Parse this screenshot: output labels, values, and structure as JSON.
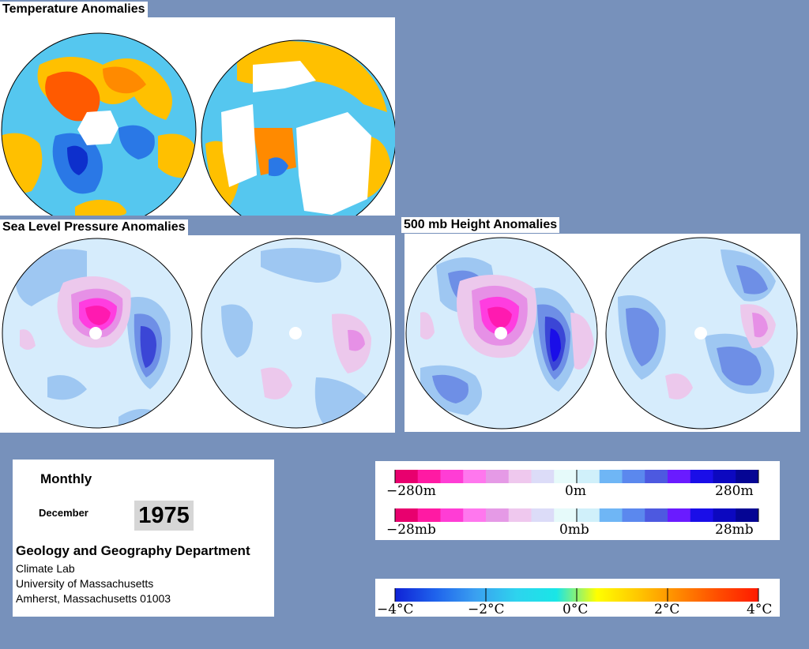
{
  "titles": {
    "temperature": "Temperature Anomalies",
    "slp": "Sea Level Pressure Anomalies",
    "height": "500 mb Height Anomalies"
  },
  "info": {
    "period": "Monthly",
    "month": "December",
    "year": "1975",
    "department": "Geology and Geography Department",
    "lab": "Climate Lab",
    "university": "University of Massachusetts",
    "address": "Amherst, Massachusetts 01003"
  },
  "legend_height": {
    "left": "−280m",
    "center": "0m",
    "right": "280m",
    "colors": [
      "#e8006e",
      "#ff1aa3",
      "#ff3dd5",
      "#ff77ee",
      "#e59ae6",
      "#efc8ee",
      "#dcdcf8",
      "#e6fafa",
      "#d0f0fa",
      "#6fb6f5",
      "#5b88ee",
      "#4d59e0",
      "#6a1bff",
      "#1a0ee8",
      "#0c08c0",
      "#050594"
    ]
  },
  "legend_slp": {
    "left": "−28mb",
    "center": "0mb",
    "right": "28mb"
  },
  "legend_temp": {
    "labels": [
      "−4°C",
      "−2°C",
      "0°C",
      "2°C",
      "4°C"
    ],
    "stops": [
      "#0f22d6",
      "#1f63ec",
      "#3aa0f0",
      "#2ed3ee",
      "#19e6e6",
      "#ffff00",
      "#ffc800",
      "#ff8a00",
      "#ff4d00",
      "#ff1a00"
    ]
  },
  "map_colors": {
    "ocean_neutral": "#55c7ef",
    "cool": "#2a78e6",
    "cold": "#0d2fcc",
    "warm": "#ffc000",
    "hot": "#ff5a00",
    "missing": "#ffffff",
    "blue1": "#d6ecfc",
    "blue2": "#9ec7f2",
    "blue3": "#6e8fe6",
    "blue4": "#3b46d6",
    "pink1": "#ecc8ec",
    "pink2": "#e690e6",
    "pink3": "#ff3de0",
    "pink4": "#ff1ab0"
  }
}
